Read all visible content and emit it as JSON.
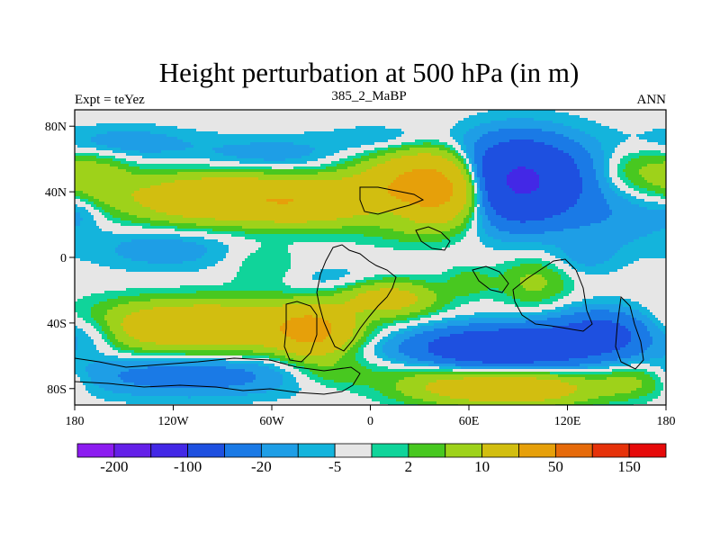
{
  "chart_data": {
    "type": "filled-contour-map",
    "title": "Height perturbation at 500 hPa (in m)",
    "subtitle_left": "Expt = teYez",
    "subtitle_center": "385_2_MaBP",
    "subtitle_right": "ANN",
    "x_ticks": [
      "180",
      "120W",
      "60W",
      "0",
      "60E",
      "120E",
      "180"
    ],
    "x_tick_lons": [
      -180,
      -120,
      -60,
      0,
      60,
      120,
      180
    ],
    "y_ticks": [
      "80N",
      "40N",
      "0",
      "40S",
      "80S"
    ],
    "y_tick_lats": [
      80,
      40,
      0,
      -40,
      -80
    ],
    "lon_range": [
      -180,
      180
    ],
    "lat_range": [
      -90,
      90
    ],
    "colorbar_levels": [
      -200,
      -150,
      -100,
      -50,
      -20,
      -10,
      -5,
      -2,
      2,
      5,
      10,
      20,
      50,
      100,
      150,
      200
    ],
    "colorbar_labels": [
      "-200",
      "-100",
      "-20",
      "-5",
      "2",
      "10",
      "50",
      "150"
    ],
    "colorbar_colors": [
      "#8c1cf0",
      "#6420e8",
      "#4328e6",
      "#1e50e0",
      "#1a7ae6",
      "#1e9ee6",
      "#14b4dc",
      "#e6e6e6",
      "#10d49a",
      "#48c820",
      "#9ed21a",
      "#d2be10",
      "#e6a00a",
      "#e66a0a",
      "#e6320a",
      "#e60a0a"
    ],
    "field_blobs": [
      {
        "lon": 40,
        "lat": 42,
        "v": 70,
        "slon": 20,
        "slat": 14
      },
      {
        "lon": 10,
        "lat": 40,
        "v": 25,
        "slon": 25,
        "slat": 14
      },
      {
        "lon": -90,
        "lat": 36,
        "v": 45,
        "slon": 40,
        "slat": 10
      },
      {
        "lon": -40,
        "lat": 33,
        "v": 25,
        "slon": 22,
        "slat": 9
      },
      {
        "lon": -165,
        "lat": 48,
        "v": 14,
        "slon": 14,
        "slat": 10
      },
      {
        "lon": 165,
        "lat": 52,
        "v": 12,
        "slon": 18,
        "slat": 10
      },
      {
        "lon": 150,
        "lat": 25,
        "v": -8,
        "slon": 25,
        "slat": 14
      },
      {
        "lon": -175,
        "lat": 30,
        "v": -6,
        "slon": 10,
        "slat": 8
      },
      {
        "lon": -150,
        "lat": 70,
        "v": -8,
        "slon": 30,
        "slat": 7
      },
      {
        "lon": -60,
        "lat": 62,
        "v": -8,
        "slon": 35,
        "slat": 8
      },
      {
        "lon": 10,
        "lat": 72,
        "v": -6,
        "slon": 25,
        "slat": 6
      },
      {
        "lon": 88,
        "lat": 45,
        "v": -50,
        "slon": 25,
        "slat": 17
      },
      {
        "lon": 20,
        "lat": 28,
        "v": -15,
        "slon": 15,
        "slat": 6
      },
      {
        "lon": 100,
        "lat": 55,
        "v": -10,
        "slon": 35,
        "slat": 16
      },
      {
        "lon": -125,
        "lat": 5,
        "v": -8,
        "slon": 30,
        "slat": 9
      },
      {
        "lon": -65,
        "lat": -5,
        "v": 5,
        "slon": 15,
        "slat": 10
      },
      {
        "lon": -100,
        "lat": -42,
        "v": 45,
        "slon": 50,
        "slat": 10
      },
      {
        "lon": -35,
        "lat": -45,
        "v": 50,
        "slon": 15,
        "slat": 10
      },
      {
        "lon": 10,
        "lat": -25,
        "v": 30,
        "slon": 20,
        "slat": 7
      },
      {
        "lon": -165,
        "lat": -45,
        "v": -12,
        "slon": 12,
        "slat": 8
      },
      {
        "lon": -20,
        "lat": -15,
        "v": -5,
        "slon": 20,
        "slat": 7
      },
      {
        "lon": -110,
        "lat": -72,
        "v": -15,
        "slon": 50,
        "slat": 9
      },
      {
        "lon": -20,
        "lat": -70,
        "v": 10,
        "slon": 20,
        "slat": 7
      },
      {
        "lon": 80,
        "lat": -55,
        "v": -40,
        "slon": 40,
        "slat": 9
      },
      {
        "lon": 145,
        "lat": -45,
        "v": -25,
        "slon": 25,
        "slat": 10
      },
      {
        "lon": 85,
        "lat": -80,
        "v": 40,
        "slon": 35,
        "slat": 7
      },
      {
        "lon": 35,
        "lat": -75,
        "v": 8,
        "slon": 20,
        "slat": 8
      },
      {
        "lon": 160,
        "lat": -75,
        "v": 12,
        "slon": 15,
        "slat": 7
      },
      {
        "lon": 100,
        "lat": -15,
        "v": 12,
        "slon": 15,
        "slat": 10
      },
      {
        "lon": 60,
        "lat": -15,
        "v": 8,
        "slon": 10,
        "slat": 6
      },
      {
        "lon": 130,
        "lat": 0,
        "v": -6,
        "slon": 15,
        "slat": 8
      }
    ]
  }
}
